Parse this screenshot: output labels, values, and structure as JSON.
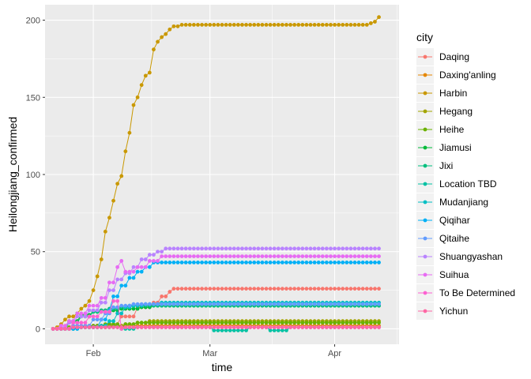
{
  "chart_data": {
    "type": "line",
    "title": "",
    "xlabel": "time",
    "ylabel": "Heilongjiang_confirmed",
    "x_ticks": [
      "Feb",
      "Mar",
      "Apr"
    ],
    "x_tick_dates": [
      "2020-02-01",
      "2020-03-01",
      "2020-04-01"
    ],
    "x_range": [
      "2020-01-20",
      "2020-04-17"
    ],
    "y_ticks": [
      0,
      50,
      100,
      150,
      200
    ],
    "ylim": [
      -10,
      210
    ],
    "grid": true,
    "legend_title": "city",
    "legend_position": "right",
    "series": [
      {
        "name": "Daqing",
        "color": "#F8766D",
        "points": [
          [
            "2020-01-22",
            0
          ],
          [
            "2020-01-28",
            1
          ],
          [
            "2020-02-01",
            2
          ],
          [
            "2020-02-05",
            3
          ],
          [
            "2020-02-08",
            8
          ],
          [
            "2020-02-12",
            14
          ],
          [
            "2020-02-16",
            17
          ],
          [
            "2020-02-18",
            21
          ],
          [
            "2020-02-20",
            24
          ],
          [
            "2020-02-21",
            26
          ],
          [
            "2020-03-15",
            26
          ],
          [
            "2020-04-12",
            26
          ]
        ]
      },
      {
        "name": "Daxing'anling",
        "color": "#E58700",
        "points": [
          [
            "2020-01-22",
            0
          ],
          [
            "2020-01-26",
            1
          ],
          [
            "2020-02-05",
            2
          ],
          [
            "2020-04-12",
            2
          ]
        ]
      },
      {
        "name": "Harbin",
        "color": "#C99800",
        "points": [
          [
            "2020-01-22",
            0
          ],
          [
            "2020-01-23",
            1
          ],
          [
            "2020-01-24",
            3
          ],
          [
            "2020-01-25",
            6
          ],
          [
            "2020-01-26",
            8
          ],
          [
            "2020-01-27",
            8
          ],
          [
            "2020-01-28",
            10
          ],
          [
            "2020-01-29",
            13
          ],
          [
            "2020-01-30",
            15
          ],
          [
            "2020-01-31",
            18
          ],
          [
            "2020-02-01",
            25
          ],
          [
            "2020-02-02",
            34
          ],
          [
            "2020-02-03",
            45
          ],
          [
            "2020-02-04",
            63
          ],
          [
            "2020-02-05",
            72
          ],
          [
            "2020-02-06",
            83
          ],
          [
            "2020-02-07",
            94
          ],
          [
            "2020-02-08",
            99
          ],
          [
            "2020-02-09",
            115
          ],
          [
            "2020-02-10",
            127
          ],
          [
            "2020-02-11",
            145
          ],
          [
            "2020-02-12",
            150
          ],
          [
            "2020-02-13",
            158
          ],
          [
            "2020-02-14",
            164
          ],
          [
            "2020-02-15",
            166
          ],
          [
            "2020-02-16",
            181
          ],
          [
            "2020-02-17",
            186
          ],
          [
            "2020-02-18",
            189
          ],
          [
            "2020-02-19",
            191
          ],
          [
            "2020-02-20",
            194
          ],
          [
            "2020-02-21",
            196
          ],
          [
            "2020-02-22",
            196
          ],
          [
            "2020-02-23",
            197
          ],
          [
            "2020-02-24",
            197
          ],
          [
            "2020-02-25",
            197
          ],
          [
            "2020-02-26",
            197
          ],
          [
            "2020-02-27",
            197
          ],
          [
            "2020-02-28",
            197
          ],
          [
            "2020-02-29",
            197
          ],
          [
            "2020-03-01",
            197
          ],
          [
            "2020-03-02",
            197
          ],
          [
            "2020-03-03",
            197
          ],
          [
            "2020-03-04",
            197
          ],
          [
            "2020-03-05",
            197
          ],
          [
            "2020-03-06",
            197
          ],
          [
            "2020-03-07",
            197
          ],
          [
            "2020-03-08",
            197
          ],
          [
            "2020-03-09",
            197
          ],
          [
            "2020-03-10",
            197
          ],
          [
            "2020-03-11",
            197
          ],
          [
            "2020-03-12",
            197
          ],
          [
            "2020-03-13",
            197
          ],
          [
            "2020-03-14",
            197
          ],
          [
            "2020-03-15",
            197
          ],
          [
            "2020-03-16",
            197
          ],
          [
            "2020-03-17",
            197
          ],
          [
            "2020-03-18",
            197
          ],
          [
            "2020-03-19",
            197
          ],
          [
            "2020-03-20",
            197
          ],
          [
            "2020-03-21",
            197
          ],
          [
            "2020-03-22",
            197
          ],
          [
            "2020-03-23",
            197
          ],
          [
            "2020-03-24",
            197
          ],
          [
            "2020-03-25",
            197
          ],
          [
            "2020-03-26",
            197
          ],
          [
            "2020-03-27",
            197
          ],
          [
            "2020-03-28",
            197
          ],
          [
            "2020-03-29",
            197
          ],
          [
            "2020-03-30",
            197
          ],
          [
            "2020-03-31",
            197
          ],
          [
            "2020-04-01",
            197
          ],
          [
            "2020-04-02",
            197
          ],
          [
            "2020-04-03",
            197
          ],
          [
            "2020-04-04",
            197
          ],
          [
            "2020-04-05",
            197
          ],
          [
            "2020-04-06",
            197
          ],
          [
            "2020-04-07",
            197
          ],
          [
            "2020-04-08",
            197
          ],
          [
            "2020-04-09",
            197
          ],
          [
            "2020-04-10",
            198
          ],
          [
            "2020-04-11",
            199
          ],
          [
            "2020-04-12",
            202
          ]
        ]
      },
      {
        "name": "Hegang",
        "color": "#A3A500",
        "points": [
          [
            "2020-01-22",
            0
          ],
          [
            "2020-01-28",
            1
          ],
          [
            "2020-02-06",
            2
          ],
          [
            "2020-02-09",
            3
          ],
          [
            "2020-02-12",
            4
          ],
          [
            "2020-02-15",
            5
          ],
          [
            "2020-04-12",
            5
          ]
        ]
      },
      {
        "name": "Heihe",
        "color": "#6BB100",
        "points": [
          [
            "2020-01-22",
            0
          ],
          [
            "2020-01-26",
            1
          ],
          [
            "2020-01-30",
            2
          ],
          [
            "2020-02-04",
            3
          ],
          [
            "2020-02-08",
            0
          ],
          [
            "2020-02-09",
            3
          ],
          [
            "2020-02-12",
            4
          ],
          [
            "2020-02-15",
            4
          ],
          [
            "2020-04-12",
            4
          ]
        ]
      },
      {
        "name": "Jiamusi",
        "color": "#00BA38",
        "points": [
          [
            "2020-01-22",
            0
          ],
          [
            "2020-01-26",
            5
          ],
          [
            "2020-01-29",
            9
          ],
          [
            "2020-02-01",
            11
          ],
          [
            "2020-02-04",
            11
          ],
          [
            "2020-02-06",
            12
          ],
          [
            "2020-02-08",
            13
          ],
          [
            "2020-02-10",
            13
          ],
          [
            "2020-02-13",
            14
          ],
          [
            "2020-02-16",
            15
          ],
          [
            "2020-04-12",
            15
          ]
        ]
      },
      {
        "name": "Jixi",
        "color": "#00BF7D",
        "points": [
          [
            "2020-01-22",
            0
          ],
          [
            "2020-01-26",
            4
          ],
          [
            "2020-01-29",
            8
          ],
          [
            "2020-02-01",
            11
          ],
          [
            "2020-02-03",
            12
          ],
          [
            "2020-02-05",
            13
          ],
          [
            "2020-02-08",
            14
          ],
          [
            "2020-02-10",
            15
          ],
          [
            "2020-04-12",
            15
          ]
        ]
      },
      {
        "name": "Location TBD",
        "color": "#00C1A3",
        "points": [
          [
            "2020-01-22",
            0
          ],
          [
            "2020-01-28",
            1
          ],
          [
            "2020-02-08",
            1
          ],
          [
            "2020-02-09",
            0
          ],
          [
            "2020-02-12",
            1
          ],
          [
            "2020-03-01",
            1
          ],
          [
            "2020-03-02",
            -1
          ],
          [
            "2020-03-10",
            -1
          ],
          [
            "2020-03-11",
            1
          ],
          [
            "2020-03-15",
            1
          ],
          [
            "2020-03-16",
            -1
          ],
          [
            "2020-03-20",
            -1
          ],
          [
            "2020-03-21",
            1
          ],
          [
            "2020-04-12",
            1
          ]
        ]
      },
      {
        "name": "Mudanjiang",
        "color": "#00BFC4",
        "points": [
          [
            "2020-01-22",
            0
          ],
          [
            "2020-01-29",
            1
          ],
          [
            "2020-02-03",
            2
          ],
          [
            "2020-02-05",
            5
          ],
          [
            "2020-02-07",
            10
          ],
          [
            "2020-02-09",
            14
          ],
          [
            "2020-02-11",
            15
          ],
          [
            "2020-02-14",
            16
          ],
          [
            "2020-02-18",
            17
          ],
          [
            "2020-04-12",
            17
          ]
        ]
      },
      {
        "name": "Qiqihar",
        "color": "#00B0F6",
        "points": [
          [
            "2020-01-22",
            0
          ],
          [
            "2020-01-29",
            1
          ],
          [
            "2020-02-03",
            6
          ],
          [
            "2020-02-05",
            12
          ],
          [
            "2020-02-06",
            21
          ],
          [
            "2020-02-08",
            28
          ],
          [
            "2020-02-10",
            33
          ],
          [
            "2020-02-12",
            37
          ],
          [
            "2020-02-14",
            40
          ],
          [
            "2020-02-16",
            43
          ],
          [
            "2020-04-12",
            43
          ]
        ]
      },
      {
        "name": "Qitaihe",
        "color": "#619CFF",
        "points": [
          [
            "2020-01-22",
            0
          ],
          [
            "2020-01-27",
            2
          ],
          [
            "2020-02-01",
            6
          ],
          [
            "2020-02-04",
            10
          ],
          [
            "2020-02-06",
            14
          ],
          [
            "2020-02-08",
            15
          ],
          [
            "2020-02-11",
            16
          ],
          [
            "2020-04-12",
            16
          ]
        ]
      },
      {
        "name": "Shuangyashan",
        "color": "#B983FF",
        "points": [
          [
            "2020-01-22",
            0
          ],
          [
            "2020-01-24",
            1
          ],
          [
            "2020-01-26",
            4
          ],
          [
            "2020-01-28",
            8
          ],
          [
            "2020-01-31",
            12
          ],
          [
            "2020-02-03",
            17
          ],
          [
            "2020-02-05",
            25
          ],
          [
            "2020-02-07",
            32
          ],
          [
            "2020-02-09",
            36
          ],
          [
            "2020-02-11",
            40
          ],
          [
            "2020-02-13",
            45
          ],
          [
            "2020-02-15",
            48
          ],
          [
            "2020-02-17",
            50
          ],
          [
            "2020-02-19",
            52
          ],
          [
            "2020-04-12",
            52
          ]
        ]
      },
      {
        "name": "Suihua",
        "color": "#E76BF3",
        "points": [
          [
            "2020-01-22",
            0
          ],
          [
            "2020-01-24",
            2
          ],
          [
            "2020-01-26",
            5
          ],
          [
            "2020-01-28",
            10
          ],
          [
            "2020-01-31",
            15
          ],
          [
            "2020-02-03",
            20
          ],
          [
            "2020-02-05",
            30
          ],
          [
            "2020-02-07",
            40
          ],
          [
            "2020-02-08",
            44
          ],
          [
            "2020-02-09",
            37
          ],
          [
            "2020-02-12",
            40
          ],
          [
            "2020-02-15",
            44
          ],
          [
            "2020-02-18",
            47
          ],
          [
            "2020-04-12",
            47
          ]
        ]
      },
      {
        "name": "To Be Determined",
        "color": "#FD61D1",
        "points": [
          [
            "2020-01-22",
            0
          ],
          [
            "2020-01-27",
            4
          ],
          [
            "2020-01-31",
            8
          ],
          [
            "2020-02-03",
            11
          ],
          [
            "2020-02-06",
            18
          ],
          [
            "2020-02-08",
            0
          ],
          [
            "2020-02-09",
            1
          ],
          [
            "2020-04-12",
            1
          ]
        ]
      },
      {
        "name": "Yichun",
        "color": "#FF67A4",
        "points": [
          [
            "2020-01-22",
            0
          ],
          [
            "2020-01-27",
            1
          ],
          [
            "2020-02-12",
            1
          ],
          [
            "2020-04-12",
            1
          ]
        ]
      }
    ]
  }
}
